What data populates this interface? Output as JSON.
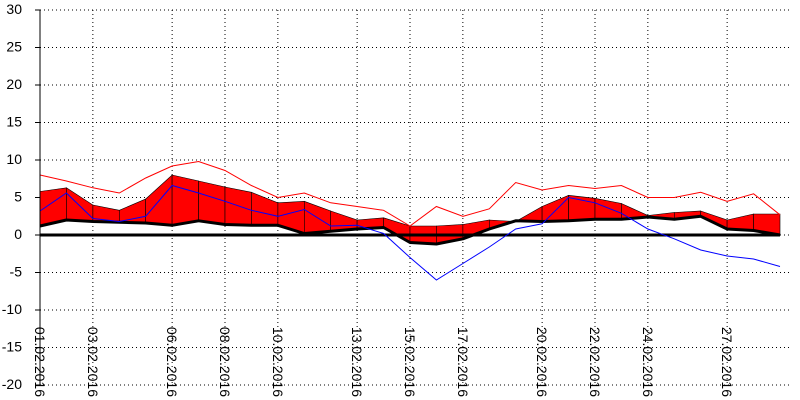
{
  "chart_data": {
    "type": "area",
    "ylim": [
      -20,
      30
    ],
    "y_ticks": [
      30,
      25,
      20,
      15,
      10,
      5,
      0,
      -5,
      -10,
      -15,
      -20
    ],
    "x_tick_labels": [
      "01.02.2016",
      "03.02.2016",
      "06.02.2016",
      "08.02.2016",
      "10.02.2016",
      "13.02.2016",
      "15.02.2016",
      "17.02.2016",
      "20.02.2016",
      "22.02.2016",
      "24.02.2016",
      "27.02.2016"
    ],
    "x_tick_index": [
      0,
      2,
      5,
      7,
      9,
      12,
      14,
      16,
      19,
      21,
      23,
      26
    ],
    "grid": true,
    "colors": {
      "positive_fill": "#ff0000",
      "negative_fill": "#0000ff",
      "thin_red": "#ff0000",
      "thin_blue": "#0000ff",
      "baseline": "#000000",
      "grid": "#000000"
    },
    "series": [
      {
        "values": [
          8.0,
          7.2,
          6.3,
          5.6,
          7.6,
          9.2,
          9.8,
          8.6,
          6.6,
          5.0,
          5.6,
          4.3,
          3.8,
          3.3,
          1.2,
          3.8,
          2.5,
          3.5,
          7.0,
          6.0,
          6.6,
          6.2,
          6.6,
          5.0,
          5.0,
          5.7,
          4.5,
          5.5,
          2.7
        ]
      },
      {
        "values": [
          5.8,
          6.3,
          4.0,
          3.3,
          4.8,
          8.0,
          7.2,
          6.4,
          5.7,
          4.3,
          4.5,
          3.2,
          2.0,
          2.3,
          1.2,
          1.2,
          1.4,
          2.0,
          1.8,
          3.8,
          5.3,
          4.9,
          4.2,
          2.6,
          3.0,
          3.2,
          2.0,
          2.8,
          2.8
        ]
      },
      {
        "values": [
          1.2,
          2.0,
          1.8,
          1.7,
          1.6,
          1.3,
          1.9,
          1.4,
          1.3,
          1.3,
          0.2,
          0.5,
          0.8,
          1.0,
          -1.0,
          -1.2,
          -0.5,
          0.8,
          1.9,
          1.8,
          1.9,
          2.1,
          2.1,
          2.4,
          2.1,
          2.5,
          0.8,
          0.6,
          0.0
        ]
      },
      {
        "values": [
          3.2,
          5.6,
          2.2,
          1.8,
          2.5,
          6.6,
          5.6,
          4.5,
          3.3,
          2.5,
          3.4,
          1.2,
          1.3,
          0.2,
          -3.0,
          -6.0,
          -3.8,
          -1.6,
          0.8,
          1.5,
          5.0,
          4.3,
          2.9,
          0.8,
          -0.5,
          -2.0,
          -2.8,
          -3.2,
          -4.2
        ]
      }
    ]
  }
}
